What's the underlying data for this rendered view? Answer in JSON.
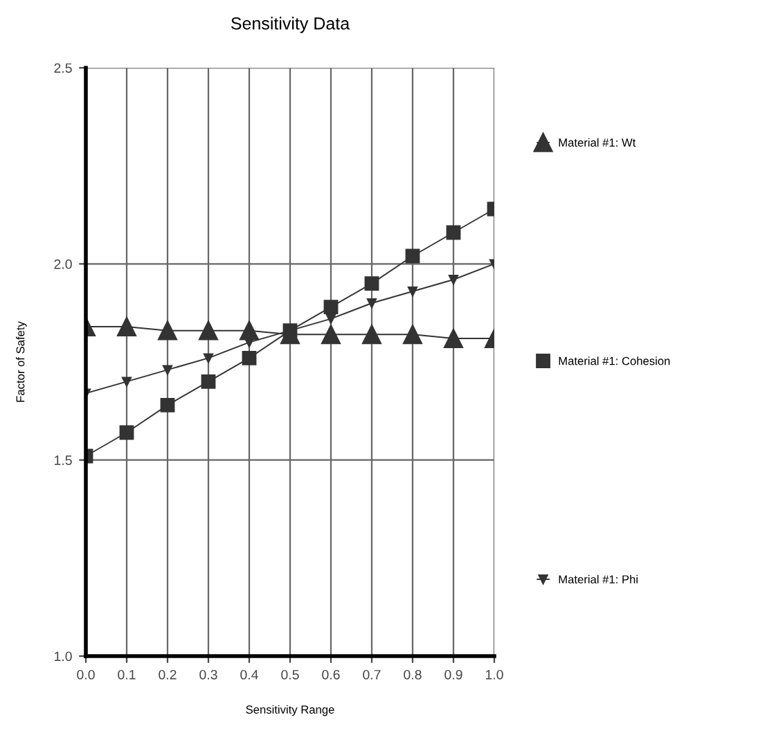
{
  "chart_data": {
    "type": "line",
    "title": "Sensitivity Data",
    "xlabel": "Sensitivity Range",
    "ylabel": "Factor of Safety",
    "x": [
      0.0,
      0.1,
      0.2,
      0.3,
      0.4,
      0.5,
      0.6,
      0.7,
      0.8,
      0.9,
      1.0
    ],
    "series": [
      {
        "name": "Material #1: Wt",
        "color": "#333333",
        "marker": "triangle",
        "values": [
          1.84,
          1.84,
          1.83,
          1.83,
          1.83,
          1.82,
          1.82,
          1.82,
          1.82,
          1.81,
          1.81
        ]
      },
      {
        "name": "Material #1: Cohesion",
        "color": "#333333",
        "marker": "square",
        "values": [
          1.51,
          1.57,
          1.64,
          1.7,
          1.76,
          1.83,
          1.89,
          1.95,
          2.02,
          2.08,
          2.14
        ]
      },
      {
        "name": "Material #1: Phi",
        "color": "#333333",
        "marker": "triangle_down",
        "values": [
          1.67,
          1.7,
          1.73,
          1.76,
          1.8,
          1.83,
          1.86,
          1.9,
          1.93,
          1.96,
          2.0
        ]
      }
    ],
    "xlim": [
      0.0,
      1.0
    ],
    "ylim": [
      1.0,
      2.5
    ],
    "xticks": [
      {
        "value": 0.0,
        "label": "0.0"
      },
      0.1,
      0.2,
      0.3,
      0.4,
      0.5,
      0.6,
      0.7,
      0.8,
      0.9,
      {
        "value": 1.0,
        "label": "1.0"
      }
    ],
    "yticks": [
      {
        "value": 1.0,
        "label": "1.0"
      },
      1.5,
      {
        "value": 2.0,
        "label": "2.0"
      },
      2.5
    ],
    "grid": true,
    "legend": "right",
    "line_style": "solid"
  }
}
